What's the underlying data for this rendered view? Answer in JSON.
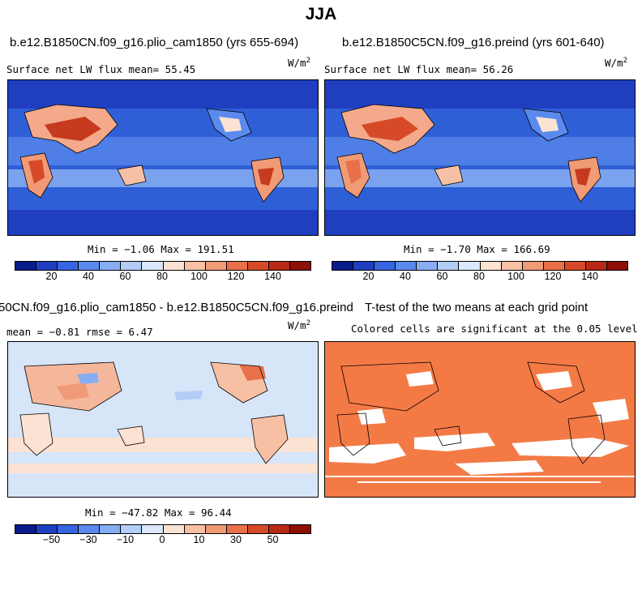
{
  "main_title": "JJA",
  "panels": {
    "a": {
      "title": "b.e12.B1850CN.f09_g16.plio_cam1850 (yrs 655-694)",
      "left_label": "Surface net LW flux mean=  55.45",
      "unit": "W/m",
      "unit_sup": "2",
      "minmax": "Min =  −1.06 Max = 191.51"
    },
    "b": {
      "title": "b.e12.B1850C5CN.f09_g16.preind (yrs 601-640)",
      "left_label": "Surface net LW flux mean=  56.26",
      "unit": "W/m",
      "unit_sup": "2",
      "minmax": "Min =  −1.70 Max = 166.69"
    },
    "c": {
      "title": "50CN.f09_g16.plio_cam1850 - b.e12.B1850C5CN.f09_g16.preind",
      "left_label": "mean =  −0.81     rmse =    6.47",
      "unit": "W/m",
      "unit_sup": "2",
      "minmax": "Min = −47.82 Max = 96.44"
    },
    "d": {
      "title": "T-test of the two means at each grid point",
      "subtitle": "Colored cells are significant at the 0.05 level"
    }
  },
  "colorbar_abs": {
    "colors": [
      "#0a1b8c",
      "#1f3fc0",
      "#3565e0",
      "#5b8aef",
      "#87aef3",
      "#b2cdf6",
      "#dbe7fa",
      "#fbe2d3",
      "#f7c0a4",
      "#f19a76",
      "#e8704b",
      "#d64a28",
      "#b82a15",
      "#8c1006"
    ],
    "tick_labels": [
      "20",
      "40",
      "60",
      "80",
      "100",
      "120",
      "140"
    ],
    "ticks": [
      20,
      40,
      60,
      80,
      100,
      120,
      140
    ],
    "range": [
      0,
      160
    ]
  },
  "colorbar_diff": {
    "colors": [
      "#0a1b8c",
      "#1f3fc0",
      "#3565e0",
      "#5b8aef",
      "#87aef3",
      "#b2cdf6",
      "#dbe7fa",
      "#fbe2d3",
      "#f7c0a4",
      "#f19a76",
      "#e8704b",
      "#d64a28",
      "#b82a15",
      "#8c1006"
    ],
    "tick_labels": [
      "−50",
      "−30",
      "−10",
      "0",
      "10",
      "30",
      "50"
    ],
    "ticks": [
      -50,
      -30,
      -10,
      0,
      10,
      30,
      50
    ],
    "boundaries": [
      -70,
      -60,
      -50,
      -40,
      -30,
      -20,
      -10,
      -5,
      0,
      5,
      10,
      20,
      30,
      40,
      50,
      60,
      70
    ]
  },
  "colors": {
    "ocean_abs": "#2f5fd6",
    "ocean_light": "#6f96e8",
    "land_warm": "#f3a98a",
    "land_hot": "#c63a1e",
    "diff_bg": "#d6e5f8",
    "diff_pos": "#f5b79c",
    "ttest": "#f47a45"
  }
}
